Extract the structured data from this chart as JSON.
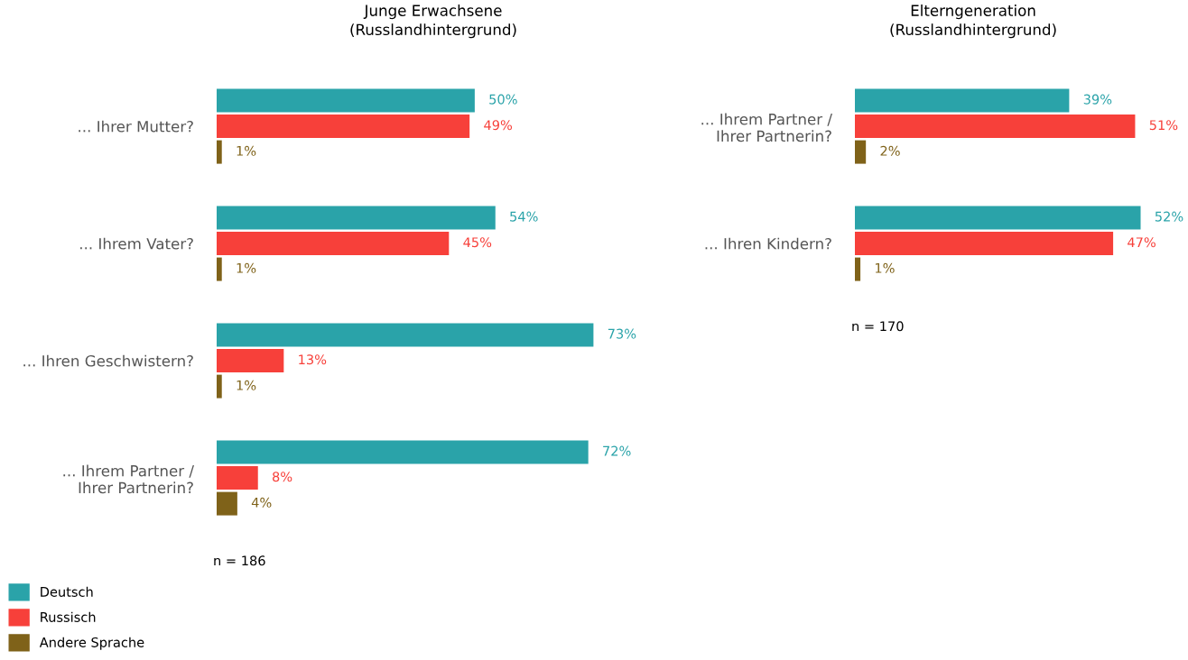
{
  "chart_data": [
    {
      "type": "bar",
      "orientation": "horizontal",
      "title": "Junge Erwachsene\n(Russlandhintergrund)",
      "categories": [
        "... Ihrer Mutter?",
        "... Ihrem Vater?",
        "... Ihren Geschwistern?",
        "... Ihrem Partner /\nIhrer Partnerin?"
      ],
      "tick_labels": "y",
      "grid": false,
      "legend": "bottom left",
      "series": [
        {
          "name": "Deutsch",
          "color": "#2aa3a9",
          "values": [
            50,
            54,
            73,
            72
          ],
          "value_labels": [
            "50%",
            "54%",
            "73%",
            "72%"
          ]
        },
        {
          "name": "Russisch",
          "color": "#f7403a",
          "values": [
            49,
            45,
            13,
            8
          ],
          "value_labels": [
            "49%",
            "45%",
            "13%",
            "8%"
          ]
        },
        {
          "name": "Andere Sprache",
          "color": "#7f6219",
          "values": [
            1,
            1,
            1,
            4
          ],
          "value_labels": [
            "1%",
            "1%",
            "1%",
            "4%"
          ]
        }
      ],
      "annotations": [
        "n = 186"
      ]
    },
    {
      "type": "bar",
      "orientation": "horizontal",
      "title": "Elterngeneration\n(Russlandhintergrund)",
      "categories": [
        "... Ihrem Partner /\nIhrer Partnerin?",
        "... Ihren Kindern?"
      ],
      "tick_labels": "y",
      "grid": false,
      "series": [
        {
          "color": "#2aa3a9",
          "values": [
            39,
            52
          ],
          "value_labels": [
            "39%",
            "52%"
          ]
        },
        {
          "color": "#f7403a",
          "values": [
            51,
            47
          ],
          "value_labels": [
            "51%",
            "47%"
          ]
        },
        {
          "color": "#7f6219",
          "values": [
            2,
            1
          ],
          "value_labels": [
            "2%",
            "1%"
          ]
        }
      ],
      "annotations": [
        "n = 170"
      ]
    }
  ]
}
